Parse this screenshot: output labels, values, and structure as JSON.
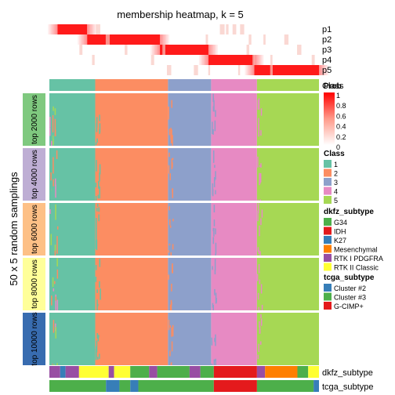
{
  "chart_data": {
    "type": "heatmap",
    "title": "membership heatmap, k = 5",
    "ylabel": "50 x 5 random samplings",
    "membership_rows": [
      "p1",
      "p2",
      "p3",
      "p4",
      "p5"
    ],
    "membership_dominant_segments": [
      {
        "row": "p1",
        "from": 0.03,
        "to": 0.14
      },
      {
        "row": "p2",
        "from": 0.14,
        "to": 0.41
      },
      {
        "row": "p3",
        "from": 0.41,
        "to": 0.59
      },
      {
        "row": "p4",
        "from": 0.59,
        "to": 0.76
      },
      {
        "row": "p5",
        "from": 0.76,
        "to": 1.0
      }
    ],
    "class_bar_label": "Class",
    "class_segments": [
      {
        "class": "1",
        "from": 0.0,
        "to": 0.17
      },
      {
        "class": "2",
        "from": 0.17,
        "to": 0.44
      },
      {
        "class": "3",
        "from": 0.44,
        "to": 0.6
      },
      {
        "class": "4",
        "from": 0.6,
        "to": 0.77
      },
      {
        "class": "5",
        "from": 0.77,
        "to": 1.0
      }
    ],
    "row_groups": [
      {
        "label": "top 2000 rows",
        "color": "#7fc97f"
      },
      {
        "label": "top 4000 rows",
        "color": "#beaed4"
      },
      {
        "label": "top 6000 rows",
        "color": "#fdc086"
      },
      {
        "label": "top 8000 rows",
        "color": "#ffff99"
      },
      {
        "label": "top 10000 rows",
        "color": "#386cb0"
      }
    ],
    "bottom_annotations": [
      "dkfz_subtype",
      "tcga_subtype"
    ],
    "legends": {
      "prob": {
        "title": "Prob",
        "ticks": [
          "1",
          "0.8",
          "0.6",
          "0.4",
          "0.2",
          "0"
        ]
      },
      "class": {
        "title": "Class",
        "items": [
          {
            "label": "1",
            "color": "#66c2a5"
          },
          {
            "label": "2",
            "color": "#fc8d62"
          },
          {
            "label": "3",
            "color": "#8da0cb"
          },
          {
            "label": "4",
            "color": "#e78ac3"
          },
          {
            "label": "5",
            "color": "#a6d854"
          }
        ]
      },
      "dkfz_subtype": {
        "title": "dkfz_subtype",
        "items": [
          {
            "label": "G34",
            "color": "#4daf4a"
          },
          {
            "label": "IDH",
            "color": "#e41a1c"
          },
          {
            "label": "K27",
            "color": "#377eb8"
          },
          {
            "label": "Mesenchymal",
            "color": "#ff7f00"
          },
          {
            "label": "RTK I PDGFRA",
            "color": "#984ea3"
          },
          {
            "label": "RTK II Classic",
            "color": "#ffff33"
          }
        ]
      },
      "tcga_subtype": {
        "title": "tcga_subtype",
        "items": [
          {
            "label": "Cluster #2",
            "color": "#377eb8"
          },
          {
            "label": "Cluster #3",
            "color": "#4daf4a"
          },
          {
            "label": "G-CIMP+",
            "color": "#e41a1c"
          }
        ]
      }
    }
  }
}
